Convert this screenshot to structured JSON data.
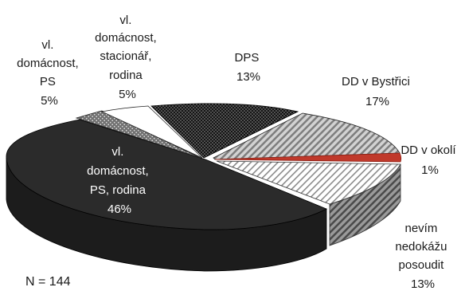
{
  "chart_data": {
    "type": "pie",
    "variant": "3d-exploded",
    "slices": [
      {
        "key": "vlastni-domacnost-ps-rodina",
        "label": [
          "vl.",
          "domácnost,",
          "PS, rodina"
        ],
        "value": 46,
        "value_label": "46%",
        "color": "#2b2b2b",
        "pattern": "solid"
      },
      {
        "key": "vlastni-domacnost-ps",
        "label": [
          "vl.",
          "domácnost,",
          "PS"
        ],
        "value": 5,
        "value_label": "5%",
        "color": "#6f6f6f",
        "pattern": "dots"
      },
      {
        "key": "vlastni-domacnost-stacionar-rodina",
        "label": [
          "vl.",
          "domácnost,",
          "stacionář,",
          "rodina"
        ],
        "value": 5,
        "value_label": "5%",
        "color": "#ffffff",
        "pattern": "solid"
      },
      {
        "key": "dps",
        "label": [
          "DPS"
        ],
        "value": 13,
        "value_label": "13%",
        "color": "#141414",
        "pattern": "dots-dense"
      },
      {
        "key": "dd-v-bystrici",
        "label": [
          "DD v Bystřici"
        ],
        "value": 17,
        "value_label": "17%",
        "color": "#b8b8b8",
        "pattern": "diagonal-hatch"
      },
      {
        "key": "dd-v-okoli",
        "label": [
          "DD v okolí"
        ],
        "value": 1,
        "value_label": "1%",
        "color": "#c0392b",
        "pattern": "solid"
      },
      {
        "key": "nevim",
        "label": [
          "nevím",
          "nedokážu",
          "posoudit"
        ],
        "value": 13,
        "value_label": "13%",
        "color": "#ffffff",
        "pattern": "diagonal-hatch-light"
      }
    ],
    "footnote": "N = 144"
  }
}
